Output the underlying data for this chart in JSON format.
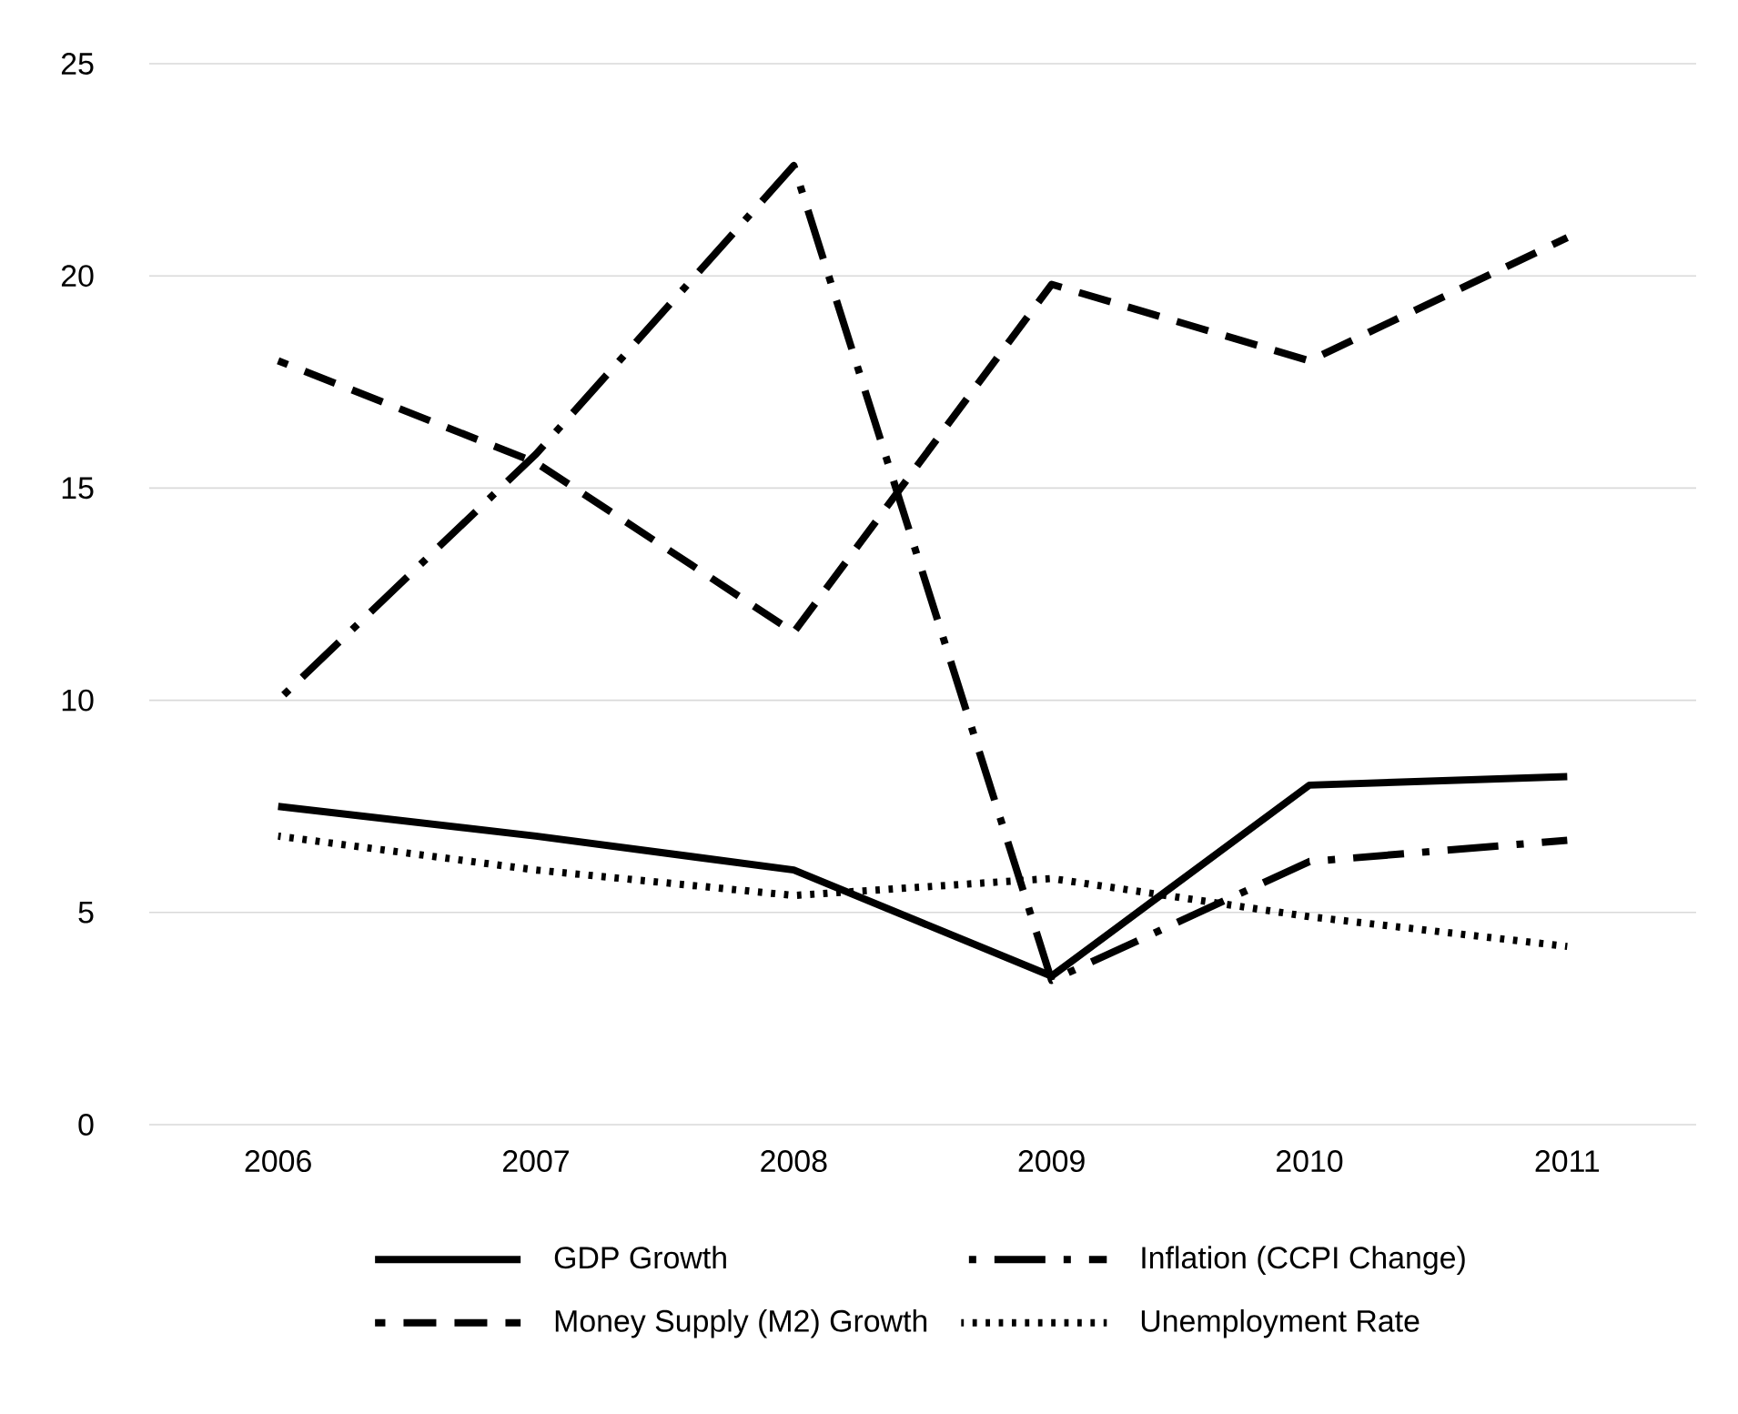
{
  "chart_data": {
    "type": "line",
    "categories": [
      "2006",
      "2007",
      "2008",
      "2009",
      "2010",
      "2011"
    ],
    "ylim": [
      0,
      25
    ],
    "yticks": [
      0,
      5,
      10,
      15,
      20,
      25
    ],
    "grid": "y",
    "legend": "bottom",
    "marker": "none",
    "series": [
      {
        "name": "GDP Growth",
        "color": "#000000",
        "line_style": "solid",
        "values": [
          7.5,
          6.8,
          6.0,
          3.5,
          8.0,
          8.2
        ]
      },
      {
        "name": "Inflation (CCPI Change)",
        "color": "#000000",
        "line_style": "dashdot",
        "values": [
          10.0,
          15.8,
          22.6,
          3.4,
          6.2,
          6.7
        ]
      },
      {
        "name": "Money Supply (M2) Growth",
        "color": "#000000",
        "line_style": "dashed",
        "values": [
          18.0,
          15.6,
          11.6,
          19.8,
          18.0,
          20.9
        ]
      },
      {
        "name": "Unemployment Rate",
        "color": "#000000",
        "line_style": "dotted",
        "values": [
          6.8,
          6.0,
          5.4,
          5.8,
          4.9,
          4.2
        ]
      }
    ]
  }
}
